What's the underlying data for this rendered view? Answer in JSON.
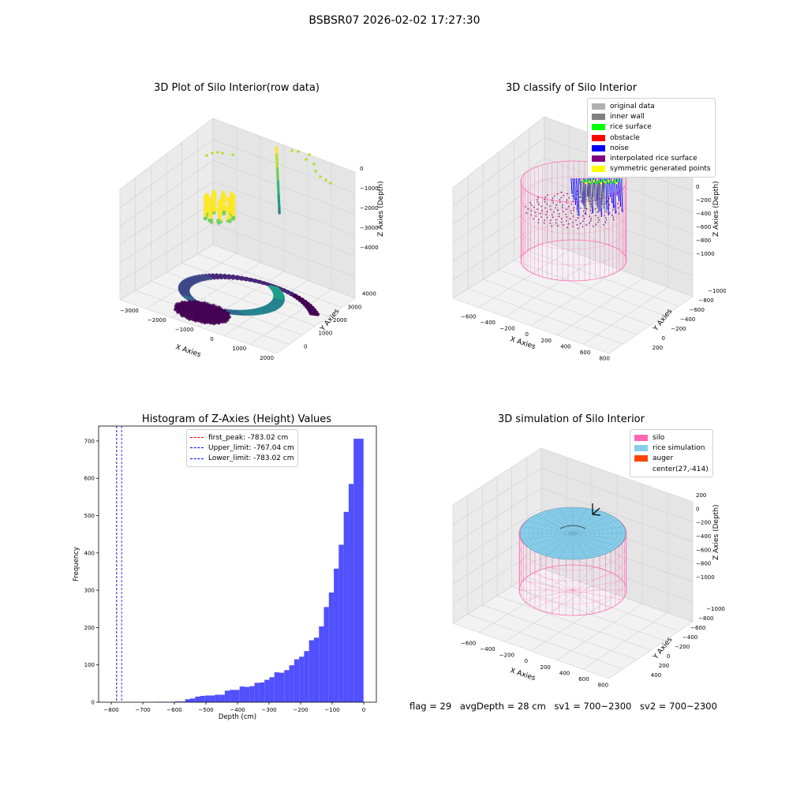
{
  "figure": {
    "suptitle": "BSBSR07 2026-02-02 17:27:30",
    "footer": {
      "flag": "flag = 29",
      "avg_depth": "avgDepth = 28 cm",
      "sv1": "sv1 = 700~2300",
      "sv2": "sv2 = 700~2300"
    }
  },
  "chart_data": [
    {
      "type": "scatter",
      "projection": "3d",
      "title": "3D Plot of Silo Interior(row data)",
      "xlabel": "X Axies",
      "ylabel": "Y Axies",
      "zlabel": "Z Axies (Depth)",
      "x_ticks": [
        "−3000",
        "−2000",
        "−1000",
        "0",
        "1000",
        "2000"
      ],
      "y_ticks": [
        "0",
        "1000",
        "2000",
        "3000",
        "4000"
      ],
      "z_ticks": [
        "0",
        "−1000",
        "−2000",
        "−3000",
        "−4000"
      ],
      "xlim": [
        -3000,
        2500
      ],
      "ylim": [
        -500,
        4500
      ],
      "zlim": [
        -4500,
        0
      ],
      "colormap": "viridis"
    },
    {
      "type": "scatter",
      "projection": "3d",
      "title": "3D classify of Silo Interior",
      "xlabel": "X Axies",
      "ylabel": "Y Axies",
      "zlabel": "Z Axies (Depth)",
      "x_ticks": [
        "−600",
        "−400",
        "−200",
        "0",
        "200",
        "400",
        "600",
        "800"
      ],
      "y_ticks": [
        "−1000",
        "−800",
        "−600",
        "−400",
        "−200",
        "0",
        "200"
      ],
      "z_ticks": [
        "200",
        "0",
        "−200",
        "−400",
        "−600",
        "−800",
        "−1000"
      ],
      "series": [
        {
          "name": "original data",
          "color": "#b0b0b0"
        },
        {
          "name": "inner wall",
          "color": "#808080"
        },
        {
          "name": "rice surface",
          "color": "#00ff00"
        },
        {
          "name": "obstacle",
          "color": "#ff0000"
        },
        {
          "name": "noise",
          "color": "#0000ff"
        },
        {
          "name": "interpolated rice surface",
          "color": "#800080"
        },
        {
          "name": "symmetric generated points",
          "color": "#ffff00"
        }
      ],
      "legend": "top-right"
    },
    {
      "type": "bar",
      "title": "Histogram of Z-Axies (Height) Values",
      "xlabel": "Depth (cm)",
      "ylabel": "Frequency",
      "xlim": [
        -840,
        40
      ],
      "ylim": [
        0,
        740
      ],
      "x_ticks": [
        -800,
        -700,
        -600,
        -500,
        -400,
        -300,
        -200,
        -100,
        0
      ],
      "y_ticks": [
        0,
        100,
        200,
        300,
        400,
        500,
        600,
        700
      ],
      "bar_color": "#5050ff",
      "bin_width": 15.7,
      "bin_lefts": [
        -660,
        -644.3,
        -628.6,
        -612.9,
        -597.2,
        -581.5,
        -565.8,
        -550.1,
        -534.4,
        -518.7,
        -503,
        -487.3,
        -471.6,
        -455.9,
        -440.2,
        -424.5,
        -408.8,
        -393.1,
        -377.4,
        -361.7,
        -346,
        -330.3,
        -314.6,
        -298.9,
        -283.2,
        -267.5,
        -251.8,
        -236.1,
        -220.4,
        -204.7,
        -189,
        -173.3,
        -157.6,
        -141.9,
        -126.2,
        -110.5,
        -94.8,
        -79.1,
        -63.4,
        -47.7,
        -32,
        -16.3
      ],
      "values": [
        1,
        1,
        1,
        1,
        2,
        2,
        8,
        10,
        15,
        17,
        18,
        18,
        20,
        20,
        31,
        33,
        33,
        42,
        41,
        43,
        52,
        53,
        60,
        67,
        80,
        79,
        86,
        99,
        115,
        122,
        137,
        166,
        173,
        203,
        255,
        294,
        358,
        422,
        510,
        585,
        706,
        706
      ],
      "lines": [
        {
          "name": "first_peak: -783.02 cm",
          "x": -783.02,
          "color": "#ff0000"
        },
        {
          "name": "Upper_limit: -767.04 cm",
          "x": -767.04,
          "color": "#0000ff"
        },
        {
          "name": "Lower_limit: -783.02 cm",
          "x": -783.02,
          "color": "#0000ff"
        }
      ],
      "legend": "top-center"
    },
    {
      "type": "scatter",
      "projection": "3d",
      "title": "3D simulation of Silo Interior",
      "xlabel": "X Axies",
      "ylabel": "Y Axies",
      "zlabel": "Z Axies (Depth)",
      "x_ticks": [
        "−600",
        "−400",
        "−200",
        "0",
        "200",
        "400",
        "600",
        "800"
      ],
      "y_ticks": [
        "−1000",
        "−800",
        "−600",
        "−400",
        "−200",
        "0",
        "200",
        "400"
      ],
      "z_ticks": [
        "200",
        "0",
        "−200",
        "−400",
        "−600",
        "−800",
        "−1000"
      ],
      "series": [
        {
          "name": "silo",
          "color": "#ff69b4"
        },
        {
          "name": "rice simulation",
          "color": "#87ceeb"
        },
        {
          "name": "auger",
          "color": "#ff4500"
        },
        {
          "name": "center(27,-414)",
          "color": "#ffffff"
        }
      ],
      "legend": "top-right"
    }
  ]
}
